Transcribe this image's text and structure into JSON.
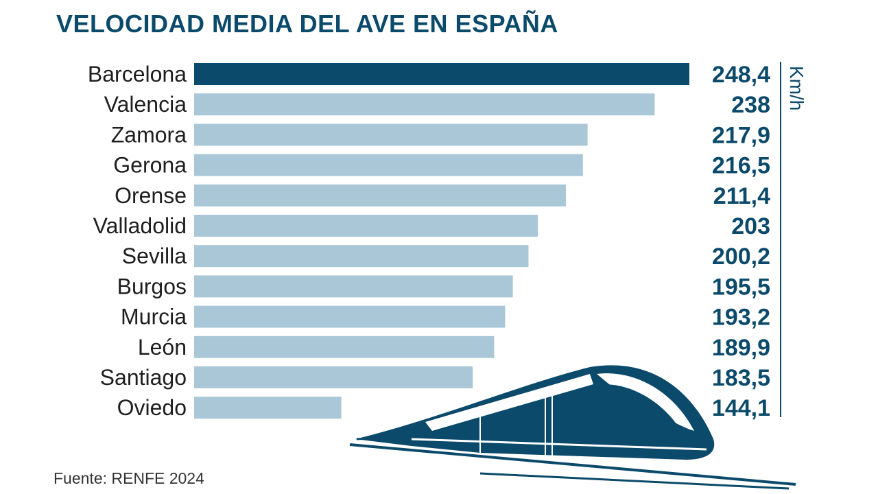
{
  "title": "VELOCIDAD MEDIA DEL AVE EN ESPAÑA",
  "source": "Fuente: RENFE 2024",
  "unit_label": "Km/h",
  "colors": {
    "highlight": "#0b4a6a",
    "bar": "#a9c7d7",
    "text": "#1e1e1e",
    "value": "#0b4a6a",
    "train": "#0b4a6a"
  },
  "chart_data": {
    "type": "bar",
    "orientation": "horizontal",
    "title": "VELOCIDAD MEDIA DEL AVE EN ESPAÑA",
    "unit": "Km/h",
    "categories": [
      "Barcelona",
      "Valencia",
      "Zamora",
      "Gerona",
      "Orense",
      "Valladolid",
      "Sevilla",
      "Burgos",
      "Murcia",
      "León",
      "Santiago",
      "Oviedo"
    ],
    "values": [
      248.4,
      238,
      217.9,
      216.5,
      211.4,
      203,
      200.2,
      195.5,
      193.2,
      189.9,
      183.5,
      144.1
    ],
    "value_labels": [
      "248,4",
      "238",
      "217,9",
      "216,5",
      "211,4",
      "203",
      "200,2",
      "195,5",
      "193,2",
      "189,9",
      "183,5",
      "144,1"
    ],
    "highlight": "Barcelona",
    "xlim": [
      100,
      248.4
    ]
  }
}
